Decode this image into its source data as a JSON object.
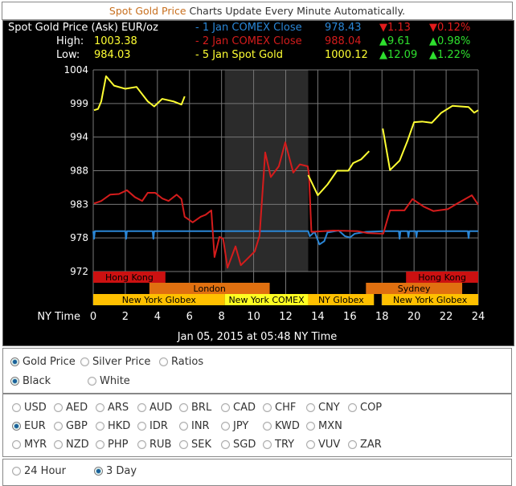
{
  "header": {
    "link": "Spot Gold Price",
    "text": " Charts Update Every Minute Automatically."
  },
  "chart_header": {
    "title": "Spot Gold Price (Ask) EUR/oz",
    "high_label": "High:",
    "high": "1003.38",
    "low_label": "Low:",
    "low": "984.03",
    "legend": [
      {
        "label": "- 1 Jan COMEX Close",
        "price": "978.43",
        "change": "▼1.13",
        "pct": "▼0.12%",
        "color": "#2a86d6",
        "change_color": "#e21c1c"
      },
      {
        "label": "- 2 Jan COMEX Close",
        "price": "988.04",
        "change": "▲9.61",
        "pct": "▲0.98%",
        "color": "#d41c1c",
        "change_color": "#2ee02e"
      },
      {
        "label": "- 5 Jan Spot Gold",
        "price": "1000.12",
        "change": "▲12.09",
        "pct": "▲1.22%",
        "color": "#ffff33",
        "change_color": "#2ee02e"
      }
    ]
  },
  "chart_data": {
    "type": "line",
    "xlabel": "NY Time",
    "xlim": [
      0,
      24
    ],
    "xticks": [
      "0",
      "2",
      "4",
      "6",
      "8",
      "10",
      "12",
      "14",
      "16",
      "18",
      "20",
      "22",
      "24"
    ],
    "ylim": [
      972,
      1004
    ],
    "yticks": [
      "1004",
      "999",
      "994",
      "988",
      "983",
      "978",
      "972"
    ],
    "grid": true,
    "shaded_range": [
      8.2,
      13.4
    ],
    "timestamp": "Jan 05, 2015 at 05:48 NY Time",
    "series": [
      {
        "name": "1 Jan COMEX Close",
        "color": "#2a86d6",
        "segments": [
          [
            [
              0,
              978.4
            ],
            [
              0.05,
              977.2
            ],
            [
              0.1,
              978.4
            ],
            [
              2,
              978.4
            ],
            [
              2.05,
              977.2
            ],
            [
              2.1,
              978.4
            ],
            [
              3.7,
              978.4
            ],
            [
              3.75,
              977.2
            ],
            [
              3.8,
              978.4
            ],
            [
              13.4,
              978.4
            ],
            [
              13.5,
              977.6
            ],
            [
              13.8,
              978.3
            ],
            [
              14.1,
              976.3
            ],
            [
              14.4,
              976.8
            ],
            [
              14.6,
              978.2
            ],
            [
              15.3,
              978.5
            ],
            [
              15.7,
              977.6
            ],
            [
              16,
              977.4
            ],
            [
              16.3,
              978
            ],
            [
              17,
              978.3
            ],
            [
              18.1,
              978.4
            ],
            [
              19.05,
              978.4
            ],
            [
              19.1,
              977.2
            ],
            [
              19.15,
              978.4
            ],
            [
              19.6,
              978.4
            ],
            [
              19.65,
              977.5
            ],
            [
              19.7,
              978.4
            ],
            [
              20.1,
              978.4
            ],
            [
              20.15,
              977.5
            ],
            [
              20.2,
              978.4
            ],
            [
              23.35,
              978.4
            ],
            [
              23.4,
              977.3
            ],
            [
              23.45,
              978.4
            ],
            [
              24,
              978.4
            ]
          ]
        ]
      },
      {
        "name": "2 Jan COMEX Close",
        "color": "#d41c1c",
        "segments": [
          [
            [
              0.05,
              982.8
            ],
            [
              0.5,
              983.2
            ],
            [
              1.05,
              984.2
            ],
            [
              1.6,
              984.3
            ],
            [
              2.1,
              984.9
            ],
            [
              2.6,
              983.8
            ],
            [
              3.05,
              983.2
            ],
            [
              3.4,
              984.5
            ],
            [
              3.86,
              984.5
            ],
            [
              4.3,
              983.6
            ],
            [
              4.7,
              983.2
            ],
            [
              5.2,
              984.2
            ],
            [
              5.5,
              983.5
            ],
            [
              5.7,
              980.7
            ],
            [
              6.2,
              979.8
            ],
            [
              6.7,
              980.7
            ],
            [
              7.0,
              981
            ],
            [
              7.36,
              981.7
            ],
            [
              7.56,
              974.3
            ],
            [
              7.87,
              977.5
            ],
            [
              8.1,
              977.2
            ],
            [
              8.37,
              972.6
            ],
            [
              8.87,
              976
            ],
            [
              9.2,
              973
            ],
            [
              9.6,
              974
            ],
            [
              10.07,
              975.2
            ],
            [
              10.37,
              977.7
            ],
            [
              10.72,
              990.9
            ],
            [
              11.07,
              987
            ],
            [
              11.57,
              988.7
            ],
            [
              11.97,
              992.5
            ],
            [
              12.47,
              987.7
            ],
            [
              12.88,
              989
            ],
            [
              13.37,
              988.7
            ],
            [
              13.45,
              987.4
            ],
            [
              13.6,
              978.3
            ],
            [
              15,
              978.5
            ],
            [
              16.5,
              978.4
            ],
            [
              17.1,
              978.1
            ],
            [
              18.08,
              978
            ],
            [
              18.5,
              981.7
            ],
            [
              19.4,
              981.7
            ],
            [
              19.9,
              983.5
            ],
            [
              20.6,
              982.3
            ],
            [
              21.2,
              981.6
            ],
            [
              22.1,
              981.9
            ],
            [
              22.7,
              982.8
            ],
            [
              23.6,
              984.1
            ],
            [
              24,
              982.6
            ]
          ]
        ]
      },
      {
        "name": "5 Jan Spot Gold",
        "color": "#ffff33",
        "segments": [
          [
            [
              0.05,
              997.6
            ],
            [
              0.3,
              997.8
            ],
            [
              0.5,
              999
            ],
            [
              0.8,
              1003
            ],
            [
              1.3,
              1001.5
            ],
            [
              2,
              1001
            ],
            [
              2.7,
              1001.3
            ],
            [
              3.4,
              999
            ],
            [
              3.8,
              998.2
            ],
            [
              4.3,
              999.4
            ],
            [
              5,
              999
            ],
            [
              5.5,
              998.5
            ],
            [
              5.7,
              999.8
            ]
          ],
          [
            [
              13.4,
              987.3
            ],
            [
              14.0,
              984.1
            ],
            [
              14.6,
              985.8
            ],
            [
              15.2,
              988
            ],
            [
              15.9,
              988
            ],
            [
              16.2,
              989.2
            ],
            [
              16.7,
              989.8
            ],
            [
              17.2,
              991.1
            ]
          ],
          [
            [
              18.05,
              994.7
            ],
            [
              18.5,
              988.1
            ],
            [
              19.1,
              989.6
            ],
            [
              19.6,
              992.8
            ],
            [
              20.0,
              995.7
            ],
            [
              20.5,
              995.8
            ],
            [
              21.1,
              995.6
            ],
            [
              21.7,
              997.2
            ],
            [
              22.4,
              998.3
            ],
            [
              23.4,
              998.1
            ],
            [
              23.75,
              997.2
            ],
            [
              24,
              997.6
            ]
          ]
        ]
      }
    ],
    "sessions": [
      {
        "label": "Hong Kong",
        "start": 0,
        "end": 4.5,
        "row": 0,
        "color": "#cc1111"
      },
      {
        "label": "Hong Kong",
        "start": 19.5,
        "end": 24,
        "row": 0,
        "color": "#cc1111"
      },
      {
        "label": "London",
        "start": 3.5,
        "end": 11,
        "row": 1,
        "color": "#e07010"
      },
      {
        "label": "Sydney",
        "start": 17,
        "end": 23,
        "row": 1,
        "color": "#e07010"
      },
      {
        "label": "New York Globex",
        "start": 0,
        "end": 8.2,
        "row": 2,
        "color": "#ffc000"
      },
      {
        "label": "New York COMEX",
        "start": 8.2,
        "end": 13.4,
        "row": 2,
        "color": "#ffff22"
      },
      {
        "label": "NY Globex",
        "start": 13.4,
        "end": 17.5,
        "row": 2,
        "color": "#ffc000"
      },
      {
        "label": "New York Globex",
        "start": 18,
        "end": 24,
        "row": 2,
        "color": "#ffc000"
      }
    ]
  },
  "controls": {
    "metal": [
      {
        "label": "Gold Price",
        "checked": true
      },
      {
        "label": "Silver Price",
        "checked": false
      },
      {
        "label": "Ratios",
        "checked": false
      }
    ],
    "theme": [
      {
        "label": "Black",
        "checked": true
      },
      {
        "label": "White",
        "checked": false
      }
    ],
    "currencies": [
      [
        "USD",
        "AED",
        "ARS",
        "AUD",
        "BRL",
        "CAD",
        "CHF",
        "CNY",
        "COP"
      ],
      [
        "EUR",
        "GBP",
        "HKD",
        "IDR",
        "INR",
        "JPY",
        "KWD",
        "MXN"
      ],
      [
        "MYR",
        "NZD",
        "PHP",
        "RUB",
        "SEK",
        "SGD",
        "TRY",
        "VUV",
        "ZAR"
      ]
    ],
    "selected_currency": "EUR",
    "range": [
      {
        "label": "24 Hour",
        "checked": false
      },
      {
        "label": "3 Day",
        "checked": true
      }
    ]
  }
}
